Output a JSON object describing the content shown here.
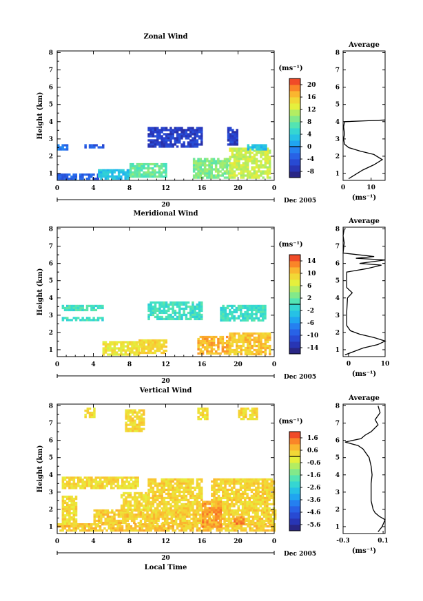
{
  "chart_data": [
    {
      "type": "heatmap",
      "title": "Zonal Wind",
      "ylabel": "Height (km)",
      "xlabel": "",
      "unit_label": "(ms⁻¹)",
      "date_label": "Dec 2005",
      "day_label": "20",
      "x_ticks": [
        "0",
        "4",
        "8",
        "12",
        "16",
        "20",
        "0"
      ],
      "y_ticks": [
        "1",
        "2",
        "3",
        "4",
        "5",
        "6",
        "7",
        "8"
      ],
      "xlim": [
        0,
        24
      ],
      "ylim": [
        0.6,
        8.1
      ],
      "colorbar_ticks": [
        "-8",
        "-4",
        "0",
        "4",
        "8",
        "12",
        "16",
        "20"
      ],
      "colorbar_range": [
        -10,
        22
      ],
      "regions": [
        {
          "x0": 0.0,
          "x1": 4.5,
          "y0": 0.75,
          "y1": 1.0,
          "value": -3
        },
        {
          "x0": 4.5,
          "x1": 8.0,
          "y0": 0.75,
          "y1": 1.25,
          "value": 3
        },
        {
          "x0": 8.0,
          "x1": 12.0,
          "y0": 0.8,
          "y1": 1.6,
          "value": 8
        },
        {
          "x0": 15.0,
          "x1": 19.0,
          "y0": 0.8,
          "y1": 1.9,
          "value": 9
        },
        {
          "x0": 19.0,
          "x1": 23.5,
          "y0": 0.8,
          "y1": 2.5,
          "value": 12
        },
        {
          "x0": 10.0,
          "x1": 16.0,
          "y0": 2.6,
          "y1": 3.7,
          "value": -6
        },
        {
          "x0": 18.8,
          "x1": 20.0,
          "y0": 2.7,
          "y1": 3.7,
          "value": -6
        },
        {
          "x0": 21.0,
          "x1": 23.0,
          "y0": 2.4,
          "y1": 2.7,
          "value": 3
        },
        {
          "x0": 0.0,
          "x1": 1.0,
          "y0": 2.4,
          "y1": 2.7,
          "value": -2
        },
        {
          "x0": 3.0,
          "x1": 5.0,
          "y0": 2.5,
          "y1": 2.7,
          "value": -4
        }
      ],
      "profile": {
        "title": "Average",
        "xlabel": "(ms⁻¹)",
        "x_ticks": [
          "0",
          "10"
        ],
        "xlim": [
          0,
          15
        ],
        "points": [
          [
            2,
            0.7
          ],
          [
            7,
            1.2
          ],
          [
            11,
            1.5
          ],
          [
            14,
            1.8
          ],
          [
            11,
            2.1
          ],
          [
            6,
            2.3
          ],
          [
            2,
            2.5
          ],
          [
            0.5,
            2.7
          ],
          [
            0.2,
            3.0
          ],
          [
            0.5,
            3.3
          ],
          [
            0.2,
            3.7
          ],
          [
            0.5,
            4.0
          ],
          [
            15,
            4.1
          ]
        ]
      }
    },
    {
      "type": "heatmap",
      "title": "Meridional Wind",
      "ylabel": "Height (km)",
      "xlabel": "",
      "unit_label": "(ms⁻¹)",
      "date_label": "Dec 2005",
      "day_label": "20",
      "x_ticks": [
        "0",
        "4",
        "8",
        "12",
        "16",
        "20",
        "0"
      ],
      "y_ticks": [
        "1",
        "2",
        "3",
        "4",
        "5",
        "6",
        "7",
        "8"
      ],
      "xlim": [
        0,
        24
      ],
      "ylim": [
        0.6,
        8.1
      ],
      "colorbar_ticks": [
        "-14",
        "-10",
        "-6",
        "-2",
        "2",
        "6",
        "10",
        "14"
      ],
      "colorbar_range": [
        -16,
        16
      ],
      "regions": [
        {
          "x0": 5.0,
          "x1": 9.0,
          "y0": 0.75,
          "y1": 1.5,
          "value": 8
        },
        {
          "x0": 9.0,
          "x1": 12.0,
          "y0": 0.8,
          "y1": 1.6,
          "value": 9
        },
        {
          "x0": 15.5,
          "x1": 19.0,
          "y0": 0.8,
          "y1": 1.8,
          "value": 11
        },
        {
          "x0": 19.0,
          "x1": 23.5,
          "y0": 0.8,
          "y1": 2.0,
          "value": 10
        },
        {
          "x0": 10.0,
          "x1": 16.0,
          "y0": 2.8,
          "y1": 3.8,
          "value": 0
        },
        {
          "x0": 18.0,
          "x1": 23.0,
          "y0": 2.7,
          "y1": 3.6,
          "value": 0
        },
        {
          "x0": 0.5,
          "x1": 5.0,
          "y0": 3.3,
          "y1": 3.6,
          "value": 0
        },
        {
          "x0": 0.5,
          "x1": 5.0,
          "y0": 2.7,
          "y1": 2.9,
          "value": 0
        }
      ],
      "profile": {
        "title": "Average",
        "xlabel": "(ms⁻¹)",
        "x_ticks": [
          "0",
          "10"
        ],
        "xlim": [
          -1.5,
          10
        ],
        "points": [
          [
            -1,
            0.7
          ],
          [
            4,
            1.1
          ],
          [
            8,
            1.3
          ],
          [
            10,
            1.5
          ],
          [
            7,
            1.7
          ],
          [
            3,
            1.9
          ],
          [
            0.5,
            2.1
          ],
          [
            -0.5,
            2.4
          ],
          [
            -0.5,
            3.2
          ],
          [
            -0.3,
            4.0
          ],
          [
            1.0,
            4.3
          ],
          [
            -0.5,
            4.6
          ],
          [
            -0.5,
            5.5
          ],
          [
            5,
            5.7
          ],
          [
            9,
            5.9
          ],
          [
            3,
            6.0
          ],
          [
            10,
            6.2
          ],
          [
            2,
            6.3
          ],
          [
            7,
            6.4
          ],
          [
            -1.5,
            6.6
          ],
          [
            -1.2,
            7.2
          ],
          [
            -1.5,
            7.6
          ],
          [
            -1.2,
            8.0
          ]
        ]
      }
    },
    {
      "type": "heatmap",
      "title": "Vertical Wind",
      "ylabel": "Height (km)",
      "xlabel": "Local Time",
      "unit_label": "(ms⁻¹)",
      "date_label": "Dec 2005",
      "day_label": "20",
      "x_ticks": [
        "0",
        "4",
        "8",
        "12",
        "16",
        "20",
        "0"
      ],
      "y_ticks": [
        "1",
        "2",
        "3",
        "4",
        "5",
        "6",
        "7",
        "8"
      ],
      "xlim": [
        0,
        24
      ],
      "ylim": [
        0.6,
        8.1
      ],
      "colorbar_ticks": [
        "-5.6",
        "-4.6",
        "-3.6",
        "-2.6",
        "-1.6",
        "-0.6",
        "0.6",
        "1.6"
      ],
      "colorbar_range": [
        -6.0,
        2.0
      ],
      "regions": [
        {
          "x0": 0.0,
          "x1": 24.0,
          "y0": 0.75,
          "y1": 1.2,
          "value": 0.5
        },
        {
          "x0": 4.0,
          "x1": 24.0,
          "y0": 1.2,
          "y1": 2.0,
          "value": 0.4
        },
        {
          "x0": 10.0,
          "x1": 16.0,
          "y0": 2.0,
          "y1": 3.8,
          "value": 0.3
        },
        {
          "x0": 17.0,
          "x1": 24.0,
          "y0": 2.0,
          "y1": 3.8,
          "value": 0.3
        },
        {
          "x0": 0.5,
          "x1": 9.0,
          "y0": 3.3,
          "y1": 3.9,
          "value": 0.2
        },
        {
          "x0": 0.5,
          "x1": 2.0,
          "y0": 1.2,
          "y1": 2.8,
          "value": 0.2
        },
        {
          "x0": 7.0,
          "x1": 10.0,
          "y0": 2.0,
          "y1": 3.0,
          "value": 0.2
        },
        {
          "x0": 16.0,
          "x1": 18.0,
          "y0": 1.0,
          "y1": 2.5,
          "value": 1.0
        },
        {
          "x0": 19.5,
          "x1": 20.5,
          "y0": 1.2,
          "y1": 1.6,
          "value": 1.2
        },
        {
          "x0": 3.0,
          "x1": 4.0,
          "y0": 7.4,
          "y1": 7.9,
          "value": 0.2
        },
        {
          "x0": 7.5,
          "x1": 9.5,
          "y0": 6.5,
          "y1": 7.8,
          "value": 0.2
        },
        {
          "x0": 20.0,
          "x1": 22.0,
          "y0": 7.2,
          "y1": 7.9,
          "value": 0.2
        },
        {
          "x0": 15.5,
          "x1": 16.5,
          "y0": 7.2,
          "y1": 7.9,
          "value": 0.2
        }
      ],
      "profile": {
        "title": "Average",
        "xlabel": "(ms⁻¹)",
        "x_ticks": [
          "-0.3",
          "0.1"
        ],
        "xlim": [
          -0.3,
          0.12
        ],
        "points": [
          [
            0.05,
            0.7
          ],
          [
            0.09,
            1.0
          ],
          [
            0.12,
            1.4
          ],
          [
            0.06,
            1.6
          ],
          [
            0.02,
            1.8
          ],
          [
            0.0,
            2.0
          ],
          [
            -0.02,
            2.5
          ],
          [
            -0.02,
            3.5
          ],
          [
            -0.01,
            4.0
          ],
          [
            -0.02,
            4.5
          ],
          [
            -0.04,
            5.0
          ],
          [
            -0.1,
            5.5
          ],
          [
            -0.15,
            5.7
          ],
          [
            -0.28,
            5.9
          ],
          [
            -0.12,
            6.1
          ],
          [
            -0.08,
            6.3
          ],
          [
            -0.02,
            6.5
          ],
          [
            0.05,
            6.9
          ],
          [
            0.02,
            7.2
          ],
          [
            0.07,
            7.6
          ],
          [
            0.05,
            8.0
          ]
        ]
      }
    }
  ]
}
